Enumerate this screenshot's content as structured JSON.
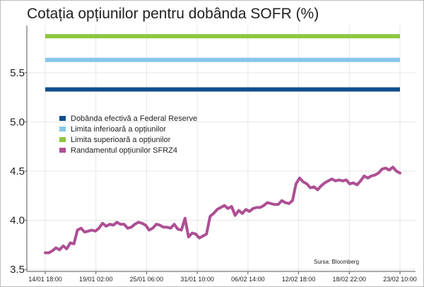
{
  "chart_data": {
    "type": "line",
    "title": "Cotația opțiunilor pentru dobânda SOFR (%)",
    "xlabel": "",
    "ylabel": "",
    "source": "Sursa: Bloomberg",
    "ylim": [
      3.48,
      5.98
    ],
    "yticks": [
      "3.5",
      "4.0",
      "4.5",
      "5.0",
      "5.5"
    ],
    "x_tick_labels": [
      "14/01 18:00",
      "19/01 02:00",
      "25/01 06:00",
      "31/01 10:00",
      "06/02 14:00",
      "12/02 18:00",
      "18/02 22:00",
      "23/02 10:00"
    ],
    "x_count": 100,
    "grid": true,
    "legend_position": "left",
    "series": [
      {
        "name": "Dobânda efectivă a Federal Reserve",
        "color": "#0f4e8c",
        "values": [
          5.33,
          5.33
        ]
      },
      {
        "name": "Limita inferioară a opțiunilor",
        "color": "#86c6ea",
        "values": [
          5.63,
          5.63
        ]
      },
      {
        "name": "Limita superioară a opțiunilor",
        "color": "#8dc63f",
        "values": [
          5.87,
          5.87
        ]
      },
      {
        "name": "Randamentul opțiunilor SFRZ4",
        "color": "#ad4f94",
        "values": [
          3.67,
          3.67,
          3.69,
          3.72,
          3.7,
          3.74,
          3.71,
          3.77,
          3.76,
          3.9,
          3.92,
          3.88,
          3.89,
          3.9,
          3.89,
          3.92,
          3.97,
          3.94,
          3.96,
          3.95,
          3.98,
          3.96,
          3.96,
          3.92,
          3.93,
          3.96,
          3.98,
          3.97,
          3.95,
          3.9,
          3.92,
          3.96,
          3.95,
          3.93,
          3.93,
          3.92,
          3.96,
          3.91,
          3.9,
          4.02,
          3.83,
          3.87,
          3.86,
          3.82,
          3.84,
          3.86,
          4.04,
          4.07,
          4.11,
          4.13,
          4.15,
          4.12,
          4.14,
          4.05,
          4.1,
          4.07,
          4.11,
          4.09,
          4.12,
          4.13,
          4.13,
          4.15,
          4.18,
          4.17,
          4.16,
          4.16,
          4.2,
          4.18,
          4.17,
          4.2,
          4.37,
          4.43,
          4.39,
          4.37,
          4.33,
          4.34,
          4.31,
          4.35,
          4.38,
          4.4,
          4.42,
          4.4,
          4.41,
          4.4,
          4.41,
          4.37,
          4.38,
          4.36,
          4.4,
          4.45,
          4.43,
          4.45,
          4.46,
          4.48,
          4.52,
          4.53,
          4.51,
          4.54,
          4.5,
          4.48
        ]
      }
    ]
  }
}
